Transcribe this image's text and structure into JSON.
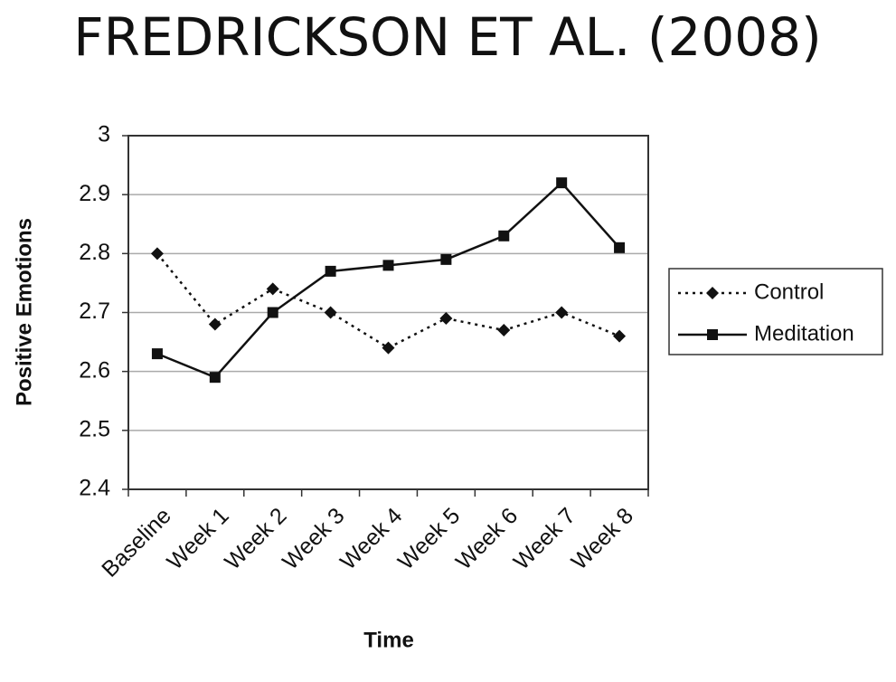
{
  "chart_data": {
    "type": "line",
    "title": "FREDRICKSON ET AL. (2008)",
    "x_label": "Time",
    "y_label": "Positive Emotions",
    "categories": [
      "Baseline",
      "Week 1",
      "Week 2",
      "Week 3",
      "Week 4",
      "Week 5",
      "Week 6",
      "Week 7",
      "Week 8"
    ],
    "series": [
      {
        "name": "Control",
        "color": "#111111",
        "marker": "diamond",
        "dash": "dotted",
        "values": [
          2.8,
          2.68,
          2.74,
          2.7,
          2.64,
          2.69,
          2.67,
          2.7,
          2.66
        ]
      },
      {
        "name": "Meditation",
        "color": "#111111",
        "marker": "square",
        "dash": "solid",
        "values": [
          2.63,
          2.59,
          2.7,
          2.77,
          2.78,
          2.79,
          2.83,
          2.92,
          2.81
        ]
      }
    ],
    "ylim": [
      2.4,
      3
    ],
    "yticks": [
      2.4,
      2.5,
      2.6,
      2.7,
      2.8,
      2.9,
      3
    ],
    "grid": true,
    "legend": "right"
  }
}
